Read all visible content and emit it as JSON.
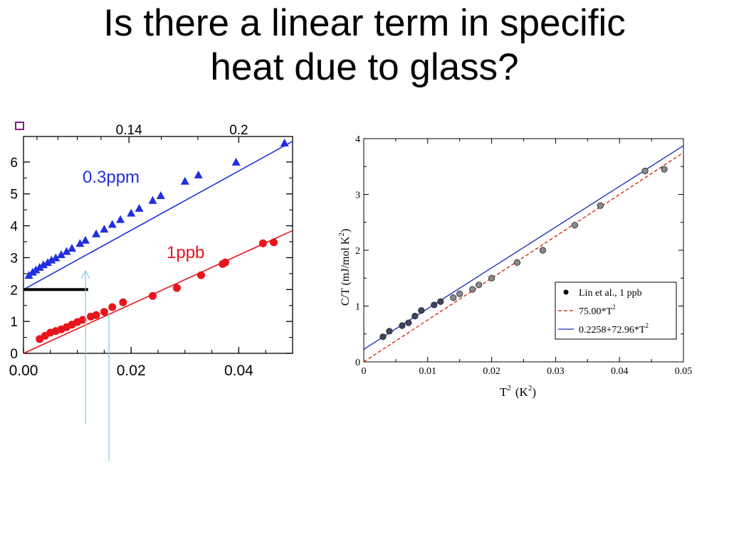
{
  "slide": {
    "title_line1": "Is there a linear term in specific",
    "title_line2": "heat due to glass?"
  },
  "colors": {
    "blue": "#1f2fe0",
    "red": "#e8141c",
    "black": "#000000",
    "annotation_arrow": "#7ec8e3"
  },
  "chart_data": [
    {
      "type": "scatter",
      "title": "",
      "xlabel": "",
      "ylabel": "",
      "xlim": [
        0.0,
        0.05
      ],
      "ylim": [
        0,
        6.8
      ],
      "x_ticks": [
        "0.00",
        "0.02",
        "0.04"
      ],
      "y_ticks": [
        "0",
        "1",
        "2",
        "3",
        "4",
        "5",
        "6"
      ],
      "top_axis_ticks": [
        "0.14",
        "0.2"
      ],
      "series": [
        {
          "name": "0.3ppm",
          "marker": "triangle",
          "color": "#1f2fe0",
          "x": [
            0.001,
            0.0017,
            0.0023,
            0.003,
            0.0037,
            0.0045,
            0.0052,
            0.006,
            0.007,
            0.008,
            0.009,
            0.0105,
            0.0115,
            0.0135,
            0.015,
            0.0165,
            0.018,
            0.02,
            0.0215,
            0.024,
            0.0255,
            0.03,
            0.0325,
            0.0395,
            0.0485
          ],
          "y": [
            2.45,
            2.55,
            2.62,
            2.7,
            2.78,
            2.85,
            2.93,
            3.0,
            3.1,
            3.2,
            3.3,
            3.45,
            3.55,
            3.75,
            3.9,
            4.05,
            4.2,
            4.4,
            4.55,
            4.8,
            4.95,
            5.4,
            5.6,
            6.0,
            6.6
          ]
        },
        {
          "name": "1ppb",
          "marker": "circle",
          "color": "#e8141c",
          "x": [
            0.003,
            0.004,
            0.005,
            0.006,
            0.007,
            0.008,
            0.009,
            0.01,
            0.011,
            0.0125,
            0.0135,
            0.015,
            0.0165,
            0.0185,
            0.024,
            0.0285,
            0.033,
            0.037,
            0.0375,
            0.0445,
            0.0465
          ],
          "y": [
            0.45,
            0.55,
            0.65,
            0.7,
            0.75,
            0.82,
            0.9,
            0.98,
            1.05,
            1.15,
            1.2,
            1.3,
            1.45,
            1.6,
            1.8,
            2.05,
            2.45,
            2.8,
            2.85,
            3.45,
            3.48
          ]
        }
      ],
      "fits": [
        {
          "series": "0.3ppm",
          "intercept": 2.0,
          "slope": 93.0
        },
        {
          "series": "1ppb",
          "intercept": 0.0,
          "slope": 77.0
        }
      ],
      "annotations": [
        "0.3ppm",
        "1ppb"
      ],
      "baseline_bar": {
        "y": 2.0,
        "x_from": 0.0,
        "x_to": 0.012
      }
    },
    {
      "type": "scatter",
      "title": "",
      "xlabel": "T² (K²)",
      "ylabel": "C/T (mJ/mol K²)",
      "xlim": [
        0,
        0.05
      ],
      "ylim": [
        0,
        4
      ],
      "x_ticks": [
        "0",
        "0.01",
        "0.02",
        "0.03",
        "0.04",
        "0.05"
      ],
      "y_ticks": [
        "0",
        "1",
        "2",
        "3",
        "4"
      ],
      "series": [
        {
          "name": "Lin et al., 1 ppb",
          "marker": "circle",
          "color": "#000000",
          "x": [
            0.003,
            0.004,
            0.006,
            0.007,
            0.008,
            0.009,
            0.011,
            0.012,
            0.014,
            0.015,
            0.017,
            0.018,
            0.02,
            0.024,
            0.028,
            0.033,
            0.037,
            0.044,
            0.047
          ],
          "y": [
            0.45,
            0.55,
            0.65,
            0.7,
            0.82,
            0.92,
            1.02,
            1.08,
            1.15,
            1.22,
            1.3,
            1.38,
            1.5,
            1.78,
            2.0,
            2.45,
            2.8,
            3.42,
            3.45
          ]
        }
      ],
      "fits": [
        {
          "name": "75.00*T^2",
          "label": "75.00*T",
          "sup": "2",
          "style": "dashed",
          "color": "#cc2200",
          "intercept": 0.0,
          "slope": 75.0
        },
        {
          "name": "0.2258+72.96*T^2",
          "label": "0.2258+72.96*T",
          "sup": "2",
          "style": "solid",
          "color": "#1a2db0",
          "intercept": 0.2258,
          "slope": 72.96
        }
      ],
      "legend": "bottom-right",
      "grid": false
    }
  ],
  "right_axis_labels": {
    "xlabel_main": "T",
    "xlabel_sup": "2",
    "xlabel_unit": "(K",
    "xlabel_unit_sup": "2",
    "xlabel_close": ")",
    "ylabel_main": "C/T (mJ/mol K",
    "ylabel_sup": "2",
    "ylabel_close": ")"
  }
}
